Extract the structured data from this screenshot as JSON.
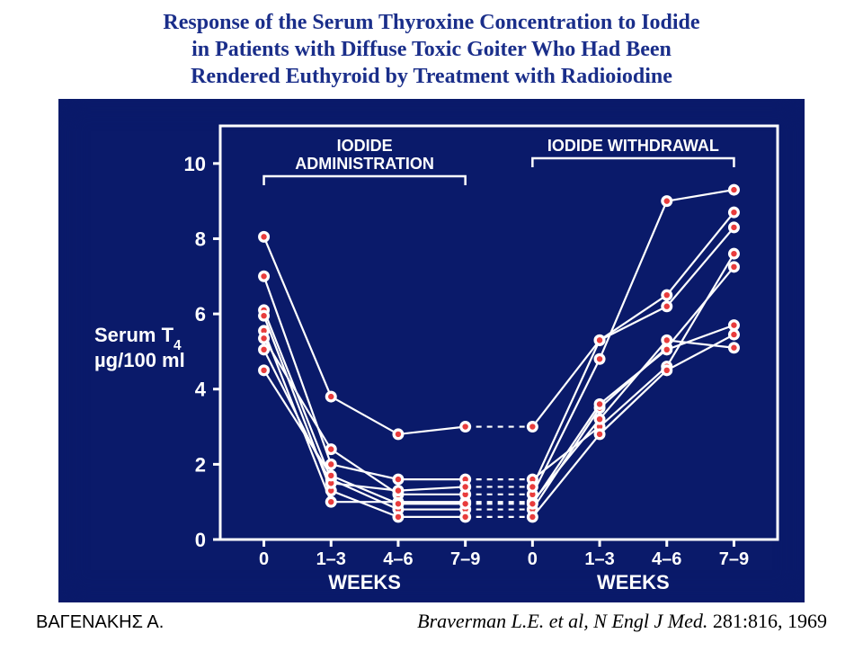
{
  "title_line1": "Response of the Serum Thyroxine Concentration to Iodide",
  "title_line2": "in Patients with Diffuse Toxic Goiter Who Had Been",
  "title_line3": "Rendered Euthyroid by Treatment with Radioiodine",
  "footer_left": "ΒΑΓΕΝΑΚΗΣ Α.",
  "footer_right_author": "Braverman L.E. et al, ",
  "footer_right_journal": "N Engl J Med. ",
  "footer_right_cite": "281:816, 1969",
  "chart": {
    "type": "line",
    "background_color": "#0a1a6a",
    "plot_background": "#0a1a6a",
    "axis_line_color": "#ffffff",
    "text_color": "#ffffff",
    "marker_fill": "#ffffff",
    "marker_inner": "#e83c3c",
    "line_color": "#ffffff",
    "line_width": 2.2,
    "marker_radius_outer": 6.5,
    "marker_radius_inner": 3.2,
    "dash_pattern": "6 6",
    "ylabel_line1": "Serum T",
    "ylabel_sub": "4",
    "ylabel_line2": "µg/100 ml",
    "ylabel_fontsize": 22,
    "ytick_fontsize": 22,
    "xtick_fontsize": 20,
    "xlabel_fontsize": 22,
    "phase_label_fontsize": 18,
    "xlim": [
      0,
      8
    ],
    "ylim": [
      0,
      11
    ],
    "yticks": [
      0,
      2,
      4,
      6,
      8,
      10
    ],
    "x_categories": [
      "0",
      "1–3",
      "4–6",
      "7–9",
      "0",
      "1–3",
      "4–6",
      "7–9"
    ],
    "xlabel": "WEEKS",
    "phase_labels": [
      {
        "text_line1": "IODIDE",
        "text_line2": "ADMINISTRATION",
        "x_start": 0,
        "x_end": 3
      },
      {
        "text_line1": "IODIDE WITHDRAWAL",
        "text_line2": "",
        "x_start": 4,
        "x_end": 7
      }
    ],
    "series": [
      {
        "y": [
          8.05,
          3.8,
          2.8,
          3.0,
          3.0,
          5.3,
          6.5,
          8.7
        ]
      },
      {
        "y": [
          7.0,
          2.0,
          1.6,
          1.6,
          1.6,
          3.0,
          4.6,
          7.6
        ]
      },
      {
        "y": [
          6.1,
          1.6,
          0.8,
          0.8,
          0.8,
          3.5,
          5.1,
          7.25
        ]
      },
      {
        "y": [
          5.95,
          1.3,
          0.6,
          0.6,
          0.6,
          2.8,
          4.5,
          5.45
        ]
      },
      {
        "y": [
          5.55,
          1.0,
          1.0,
          1.0,
          1.0,
          3.2,
          5.3,
          5.1
        ]
      },
      {
        "y": [
          5.35,
          2.4,
          1.2,
          1.2,
          1.2,
          4.8,
          9.0,
          9.3
        ]
      },
      {
        "y": [
          5.05,
          1.5,
          1.3,
          1.4,
          1.4,
          5.3,
          6.2,
          8.3
        ]
      },
      {
        "y": [
          4.5,
          1.7,
          0.95,
          0.95,
          0.95,
          3.6,
          5.05,
          5.7
        ]
      }
    ]
  }
}
